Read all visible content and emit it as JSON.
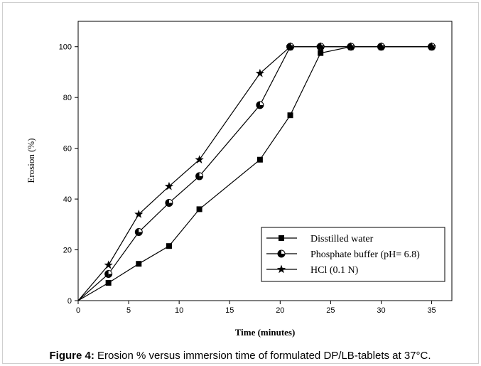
{
  "chart_data": {
    "type": "line",
    "x_label": "Time (minutes)",
    "y_label": "Erosion (%)",
    "caption_label": "Figure 4:",
    "caption": "Erosion % versus immersion time of formulated DP/LB-tablets at 37°C.",
    "x": [
      0,
      3,
      6,
      9,
      12,
      18,
      21,
      24,
      27,
      30,
      35
    ],
    "series": [
      {
        "name": "Disstilled water",
        "color": "#000000",
        "marker": "square",
        "values": [
          0,
          7,
          14.5,
          21.5,
          36,
          55.5,
          73,
          97.5,
          100,
          100,
          100
        ]
      },
      {
        "name": "Phosphate buffer (pH= 6.8)",
        "color": "#000000",
        "marker": "half-circle",
        "values": [
          0,
          10.5,
          27,
          38.5,
          49,
          77,
          100,
          100,
          100,
          100,
          100
        ]
      },
      {
        "name": "HCl (0.1 N)",
        "color": "#000000",
        "marker": "star",
        "values": [
          0,
          14,
          34,
          45,
          55.5,
          89.5,
          100,
          100,
          100,
          100,
          100
        ]
      }
    ],
    "xlim": [
      0,
      37
    ],
    "ylim": [
      0,
      110
    ],
    "xticks": [
      0,
      5,
      10,
      15,
      20,
      25,
      30,
      35
    ],
    "yticks": [
      0,
      20,
      40,
      60,
      80,
      100
    ],
    "legend": "lower right"
  }
}
